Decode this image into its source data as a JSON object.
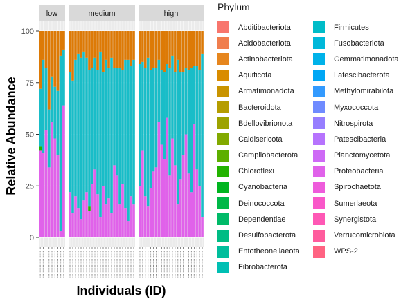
{
  "chart_data": {
    "type": "bar",
    "stacked": true,
    "ylabel": "Relative Abundance",
    "xlabel": "Individuals (ID)",
    "ylim": [
      0,
      100
    ],
    "yticks": [
      "0",
      "25",
      "50",
      "75",
      "100"
    ],
    "grid": true,
    "legend_placement": "right",
    "facets": [
      {
        "label": "low",
        "bars": [
          {
            "proteobacteria": 42,
            "firmicutes": 28,
            "chloroflexi": 2
          },
          {
            "proteobacteria": 41,
            "firmicutes": 45
          },
          {
            "proteobacteria": 52,
            "firmicutes": 30
          },
          {
            "proteobacteria": 34,
            "firmicutes": 28
          },
          {
            "proteobacteria": 56,
            "firmicutes": 22
          },
          {
            "proteobacteria": 48,
            "firmicutes": 25
          },
          {
            "proteobacteria": 40,
            "firmicutes": 31
          },
          {
            "proteobacteria": 3,
            "firmicutes": 85
          },
          {
            "proteobacteria": 64,
            "firmicutes": 27
          }
        ]
      },
      {
        "label": "medium",
        "bars": [
          {
            "proteobacteria": 22,
            "firmicutes": 58
          },
          {
            "proteobacteria": 12,
            "firmicutes": 64
          },
          {
            "proteobacteria": 20,
            "firmicutes": 66
          },
          {
            "proteobacteria": 14,
            "firmicutes": 75
          },
          {
            "proteobacteria": 9,
            "firmicutes": 78
          },
          {
            "proteobacteria": 18,
            "firmicutes": 72
          },
          {
            "proteobacteria": 22,
            "firmicutes": 65
          },
          {
            "proteobacteria": 13,
            "firmicutes": 66,
            "chloroflexi": 2
          },
          {
            "proteobacteria": 26,
            "firmicutes": 56
          },
          {
            "proteobacteria": 33,
            "firmicutes": 54
          },
          {
            "proteobacteria": 21,
            "firmicutes": 60
          },
          {
            "proteobacteria": 10,
            "firmicutes": 80
          },
          {
            "proteobacteria": 25,
            "firmicutes": 55
          },
          {
            "proteobacteria": 16,
            "firmicutes": 70
          },
          {
            "proteobacteria": 19,
            "firmicutes": 63
          },
          {
            "proteobacteria": 12,
            "firmicutes": 75
          },
          {
            "proteobacteria": 35,
            "firmicutes": 47
          },
          {
            "proteobacteria": 30,
            "firmicutes": 52
          },
          {
            "proteobacteria": 16,
            "firmicutes": 66
          },
          {
            "proteobacteria": 26,
            "firmicutes": 55
          },
          {
            "proteobacteria": 14,
            "firmicutes": 72
          },
          {
            "proteobacteria": 8,
            "firmicutes": 78
          },
          {
            "proteobacteria": 20,
            "firmicutes": 63
          },
          {
            "proteobacteria": 16,
            "firmicutes": 70
          }
        ]
      },
      {
        "label": "high",
        "bars": [
          {
            "proteobacteria": 25,
            "firmicutes": 59
          },
          {
            "proteobacteria": 42,
            "firmicutes": 43
          },
          {
            "proteobacteria": 20,
            "firmicutes": 62
          },
          {
            "proteobacteria": 15,
            "firmicutes": 72
          },
          {
            "proteobacteria": 24,
            "firmicutes": 57
          },
          {
            "proteobacteria": 32,
            "firmicutes": 50
          },
          {
            "proteobacteria": 34,
            "firmicutes": 48
          },
          {
            "proteobacteria": 56,
            "firmicutes": 30
          },
          {
            "proteobacteria": 45,
            "firmicutes": 36
          },
          {
            "proteobacteria": 38,
            "firmicutes": 42
          },
          {
            "proteobacteria": 58,
            "firmicutes": 26
          },
          {
            "proteobacteria": 30,
            "firmicutes": 52
          },
          {
            "proteobacteria": 48,
            "firmicutes": 40
          },
          {
            "proteobacteria": 35,
            "firmicutes": 45
          },
          {
            "proteobacteria": 16,
            "firmicutes": 70
          },
          {
            "proteobacteria": 28,
            "firmicutes": 52
          },
          {
            "proteobacteria": 40,
            "firmicutes": 40
          },
          {
            "proteobacteria": 50,
            "firmicutes": 32
          },
          {
            "proteobacteria": 31,
            "firmicutes": 50
          },
          {
            "proteobacteria": 22,
            "firmicutes": 60
          },
          {
            "proteobacteria": 55,
            "firmicutes": 28
          },
          {
            "proteobacteria": 33,
            "firmicutes": 50
          },
          {
            "proteobacteria": 25,
            "firmicutes": 56
          },
          {
            "proteobacteria": 10,
            "firmicutes": 79
          }
        ]
      }
    ],
    "series_keys": {
      "proteobacteria": "Proteobacteria",
      "firmicutes": "Firmicutes",
      "chloroflexi": "Chloroflexi",
      "actinobacteriota": "Actinobacteriota"
    }
  },
  "legend": {
    "title": "Phylum",
    "columns": [
      [
        {
          "label": "Abditibacteriota",
          "color": "#F8766D"
        },
        {
          "label": "Acidobacteriota",
          "color": "#F07E4E"
        },
        {
          "label": "Actinobacteriota",
          "color": "#E6861E"
        },
        {
          "label": "Aquificota",
          "color": "#D98C00"
        },
        {
          "label": "Armatimonadota",
          "color": "#C99400"
        },
        {
          "label": "Bacteroidota",
          "color": "#B59D00"
        },
        {
          "label": "Bdellovibrionota",
          "color": "#9DA300"
        },
        {
          "label": "Caldisericota",
          "color": "#82A900"
        },
        {
          "label": "Campilobacterota",
          "color": "#5DAF00"
        },
        {
          "label": "Chloroflexi",
          "color": "#23B300"
        },
        {
          "label": "Cyanobacteria",
          "color": "#00B520"
        },
        {
          "label": "Deinococcota",
          "color": "#00B848"
        },
        {
          "label": "Dependentiae",
          "color": "#00BA68"
        },
        {
          "label": "Desulfobacterota",
          "color": "#00BC84"
        },
        {
          "label": "Entotheonellaeota",
          "color": "#00BE9C"
        },
        {
          "label": "Fibrobacterota",
          "color": "#00BFB3"
        }
      ],
      [
        {
          "label": "Firmicutes",
          "color": "#00BCC8"
        },
        {
          "label": "Fusobacteriota",
          "color": "#00B8DA"
        },
        {
          "label": "Gemmatimonadota",
          "color": "#00B2E9"
        },
        {
          "label": "Latescibacterota",
          "color": "#00A7F5"
        },
        {
          "label": "Methylomirabilota",
          "color": "#339AFE"
        },
        {
          "label": "Myxococcota",
          "color": "#6F8BFF"
        },
        {
          "label": "Nitrospirota",
          "color": "#977EFF"
        },
        {
          "label": "Patescibacteria",
          "color": "#B673FD"
        },
        {
          "label": "Planctomycetota",
          "color": "#CE6AF6"
        },
        {
          "label": "Proteobacteria",
          "color": "#E062EA"
        },
        {
          "label": "Spirochaetota",
          "color": "#EE5CDB"
        },
        {
          "label": "Sumerlaeota",
          "color": "#F958C9"
        },
        {
          "label": "Synergistota",
          "color": "#FE58B5"
        },
        {
          "label": "Verrucomicrobiota",
          "color": "#FF5C9D"
        },
        {
          "label": "WPS-2",
          "color": "#FF6382"
        }
      ]
    ]
  },
  "colors": {
    "proteobacteria": "#E062EA",
    "firmicutes": "#19BDC8",
    "chloroflexi": "#23B300",
    "actinobacteriota": "#DD7A06",
    "panel_bg": "#EBEBEB",
    "strip_bg": "#D9D9D9",
    "gridline": "#FFFFFF"
  }
}
